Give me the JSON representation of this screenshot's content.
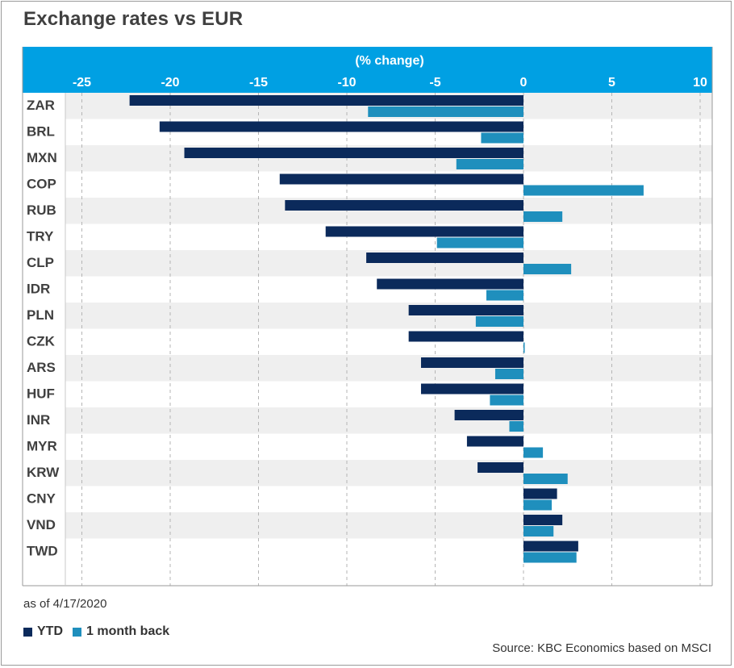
{
  "title": "Exchange rates vs EUR",
  "footnote": "as of 4/17/2020",
  "source": "Source: KBC Economics based on MSCI",
  "colors": {
    "ytd": "#0b2a5b",
    "month": "#1f8fbd",
    "axis_band": "#00a0e3",
    "stripe": "#efefef"
  },
  "legend": [
    {
      "label": "YTD",
      "color": "#0b2a5b"
    },
    {
      "label": "1 month back",
      "color": "#1f8fbd"
    }
  ],
  "chart_data": {
    "type": "bar",
    "orientation": "horizontal",
    "xlabel": "(% change)",
    "axis_position": "top",
    "xlim": [
      -26.5,
      10.5
    ],
    "xticks": [
      -25,
      -20,
      -15,
      -10,
      -5,
      0,
      5,
      10
    ],
    "grid": true,
    "legend_placement": "bottom-left",
    "categories": [
      "ZAR",
      "BRL",
      "MXN",
      "COP",
      "RUB",
      "TRY",
      "CLP",
      "IDR",
      "PLN",
      "CZK",
      "ARS",
      "HUF",
      "INR",
      "MYR",
      "KRW",
      "CNY",
      "VND",
      "TWD"
    ],
    "series": [
      {
        "name": "YTD",
        "values": [
          -22.3,
          -20.6,
          -19.2,
          -13.8,
          -13.5,
          -11.2,
          -8.9,
          -8.3,
          -6.5,
          -6.5,
          -5.8,
          -5.8,
          -3.9,
          -3.2,
          -2.6,
          1.9,
          2.2,
          3.1
        ]
      },
      {
        "name": "1 month back",
        "values": [
          -8.8,
          -2.4,
          -3.8,
          6.8,
          2.2,
          -4.9,
          2.7,
          -2.1,
          -2.7,
          0.05,
          -1.6,
          -1.9,
          -0.8,
          1.1,
          2.5,
          1.6,
          1.7,
          3.0
        ]
      }
    ]
  }
}
